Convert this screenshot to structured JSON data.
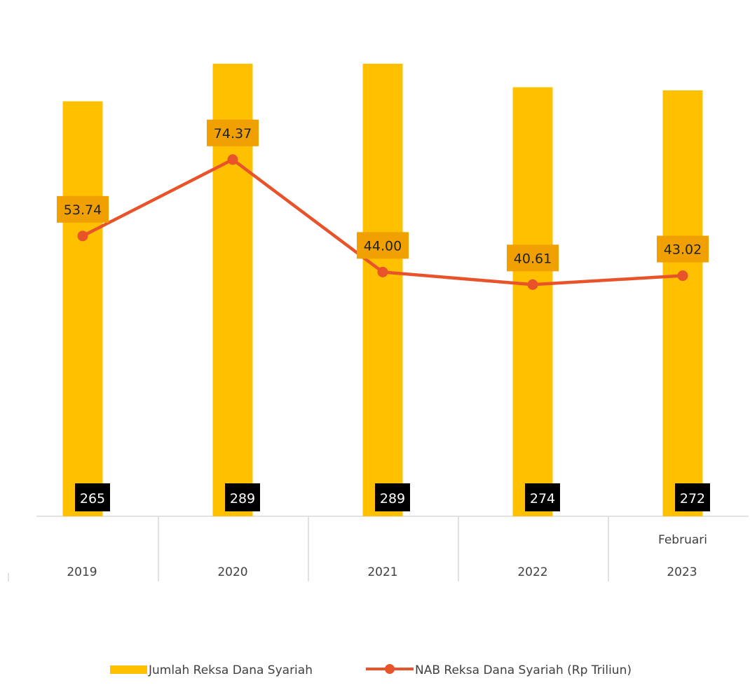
{
  "chart_data": {
    "type": "bar",
    "categories": [
      "2019",
      "2020",
      "2021",
      "2022",
      "2023"
    ],
    "category_sublabels": [
      "",
      "",
      "",
      "",
      "Februari"
    ],
    "series": [
      {
        "name": "Jumlah Reksa Dana Syariah",
        "type": "bar",
        "axis": "primary",
        "values": [
          265,
          289,
          289,
          274,
          272
        ],
        "labels": [
          "265",
          "289",
          "289",
          "274",
          "272"
        ],
        "color": "#FFC000"
      },
      {
        "name": "NAB Reksa Dana Syariah (Rp Triliun)",
        "type": "line",
        "axis": "secondary",
        "values": [
          53.74,
          74.37,
          44.0,
          40.61,
          43.02
        ],
        "labels": [
          "53.74",
          "74.37",
          "44.00",
          "40.61",
          "43.02"
        ],
        "color": "#E9532A"
      }
    ],
    "bar_label_bg": "#000000",
    "line_label_bg": "#F0A000",
    "grid": false,
    "legend": "bottom"
  }
}
